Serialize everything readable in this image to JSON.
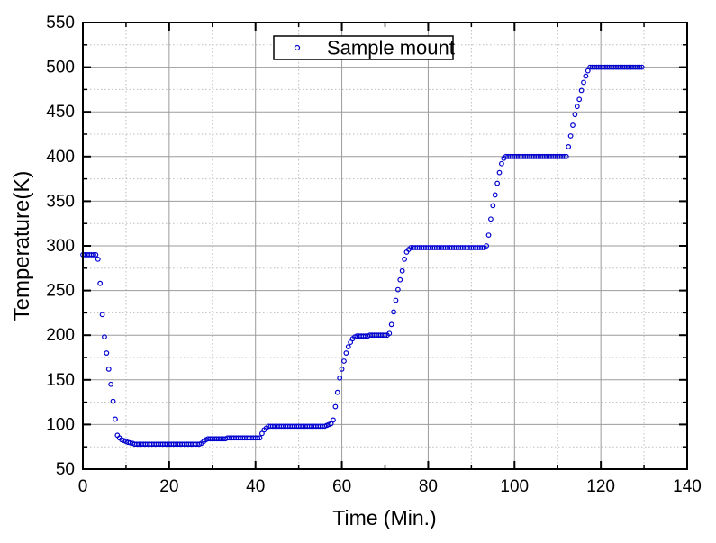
{
  "figure": {
    "background": "#ffffff",
    "axis_color": "#000000",
    "grid_major_color": "#9b9b9b",
    "grid_minor_color": "#bdbdbd"
  },
  "chart_data": {
    "type": "scatter",
    "title": "",
    "xlabel": "Time (Min.)",
    "ylabel": "Temperature(K)",
    "xlim": [
      0,
      140
    ],
    "ylim": [
      50,
      550
    ],
    "xticks_major": [
      0,
      20,
      40,
      60,
      80,
      100,
      120,
      140
    ],
    "xticks_minor": [
      10,
      30,
      50,
      70,
      90,
      110,
      130
    ],
    "yticks_major": [
      50,
      100,
      150,
      200,
      250,
      300,
      350,
      400,
      450,
      500,
      550
    ],
    "yticks_minor": [
      75,
      125,
      175,
      225,
      275,
      325,
      375,
      425,
      475,
      525
    ],
    "grid": {
      "major": "solid",
      "minor": "dotted"
    },
    "legend": {
      "position": "top-center",
      "border": true
    },
    "series": [
      {
        "name": "Sample mount",
        "marker": "open-circle",
        "color": "#0000d0",
        "points": [
          [
            0,
            290
          ],
          [
            0.5,
            290
          ],
          [
            1,
            290
          ],
          [
            1.5,
            290
          ],
          [
            2,
            290
          ],
          [
            2.5,
            290
          ],
          [
            3,
            290
          ],
          [
            3.5,
            285
          ],
          [
            4,
            258
          ],
          [
            4.5,
            223
          ],
          [
            5,
            198
          ],
          [
            5.5,
            180
          ],
          [
            6,
            162
          ],
          [
            6.5,
            145
          ],
          [
            7,
            126
          ],
          [
            7.5,
            106
          ],
          [
            8,
            88
          ],
          [
            8.5,
            85
          ],
          [
            9,
            83
          ],
          [
            9.5,
            82
          ],
          [
            10,
            81
          ],
          [
            10.5,
            80
          ],
          [
            11,
            79.5
          ],
          [
            11.5,
            79
          ],
          [
            12,
            78
          ],
          [
            12.5,
            78
          ],
          [
            13,
            78
          ],
          [
            13.5,
            78
          ],
          [
            14,
            78
          ],
          [
            14.5,
            78
          ],
          [
            15,
            78
          ],
          [
            15.5,
            78
          ],
          [
            16,
            78
          ],
          [
            16.5,
            78
          ],
          [
            17,
            78
          ],
          [
            17.5,
            78
          ],
          [
            18,
            78
          ],
          [
            18.5,
            78
          ],
          [
            19,
            78
          ],
          [
            19.5,
            78
          ],
          [
            20,
            78
          ],
          [
            20.5,
            78
          ],
          [
            21,
            78
          ],
          [
            21.5,
            78
          ],
          [
            22,
            78
          ],
          [
            22.5,
            78
          ],
          [
            23,
            78
          ],
          [
            23.5,
            78
          ],
          [
            24,
            78
          ],
          [
            24.5,
            78
          ],
          [
            25,
            78
          ],
          [
            25.5,
            78
          ],
          [
            26,
            78
          ],
          [
            26.5,
            78
          ],
          [
            27,
            78
          ],
          [
            27.5,
            79
          ],
          [
            28,
            81
          ],
          [
            28.5,
            83
          ],
          [
            29,
            84
          ],
          [
            29.5,
            84
          ],
          [
            30,
            84
          ],
          [
            30.5,
            84
          ],
          [
            31,
            84
          ],
          [
            31.5,
            84
          ],
          [
            32,
            84
          ],
          [
            32.5,
            84
          ],
          [
            33,
            84
          ],
          [
            33.5,
            85
          ],
          [
            34,
            85
          ],
          [
            34.5,
            85
          ],
          [
            35,
            85
          ],
          [
            35.5,
            85
          ],
          [
            36,
            85
          ],
          [
            36.5,
            85
          ],
          [
            37,
            85
          ],
          [
            37.5,
            85
          ],
          [
            38,
            85
          ],
          [
            38.5,
            85
          ],
          [
            39,
            85
          ],
          [
            39.5,
            85
          ],
          [
            40,
            85
          ],
          [
            40.5,
            85
          ],
          [
            41,
            85
          ],
          [
            41.5,
            90
          ],
          [
            42,
            94
          ],
          [
            42.5,
            96
          ],
          [
            43,
            98
          ],
          [
            43.5,
            98
          ],
          [
            44,
            98
          ],
          [
            44.5,
            98
          ],
          [
            45,
            98
          ],
          [
            45.5,
            98
          ],
          [
            46,
            98
          ],
          [
            46.5,
            98
          ],
          [
            47,
            98
          ],
          [
            47.5,
            98
          ],
          [
            48,
            98
          ],
          [
            48.5,
            98
          ],
          [
            49,
            98
          ],
          [
            49.5,
            98
          ],
          [
            50,
            98
          ],
          [
            50.5,
            98
          ],
          [
            51,
            98
          ],
          [
            51.5,
            98
          ],
          [
            52,
            98
          ],
          [
            52.5,
            98
          ],
          [
            53,
            98
          ],
          [
            53.5,
            98
          ],
          [
            54,
            98
          ],
          [
            54.5,
            98
          ],
          [
            55,
            98
          ],
          [
            55.5,
            98
          ],
          [
            56,
            98
          ],
          [
            56.5,
            99
          ],
          [
            57,
            100
          ],
          [
            57.5,
            101
          ],
          [
            58,
            105
          ],
          [
            58.5,
            120
          ],
          [
            59,
            136
          ],
          [
            59.5,
            152
          ],
          [
            60,
            162
          ],
          [
            60.5,
            171
          ],
          [
            61,
            180
          ],
          [
            61.5,
            187
          ],
          [
            62,
            192
          ],
          [
            62.5,
            196
          ],
          [
            63,
            198
          ],
          [
            63.5,
            199
          ],
          [
            64,
            199
          ],
          [
            64.5,
            199
          ],
          [
            65,
            199
          ],
          [
            65.5,
            199
          ],
          [
            66,
            199
          ],
          [
            66.5,
            200
          ],
          [
            67,
            200
          ],
          [
            67.5,
            200
          ],
          [
            68,
            200
          ],
          [
            68.5,
            200
          ],
          [
            69,
            200
          ],
          [
            69.5,
            200
          ],
          [
            70,
            200
          ],
          [
            70.5,
            200
          ],
          [
            71,
            202
          ],
          [
            71.5,
            212
          ],
          [
            72,
            226
          ],
          [
            72.5,
            239
          ],
          [
            73,
            251
          ],
          [
            73.5,
            262
          ],
          [
            74,
            272
          ],
          [
            74.5,
            285
          ],
          [
            75,
            293
          ],
          [
            75.5,
            296
          ],
          [
            76,
            298
          ],
          [
            76.5,
            298
          ],
          [
            77,
            298
          ],
          [
            77.5,
            298
          ],
          [
            78,
            298
          ],
          [
            78.5,
            298
          ],
          [
            79,
            298
          ],
          [
            79.5,
            298
          ],
          [
            80,
            298
          ],
          [
            80.5,
            298
          ],
          [
            81,
            298
          ],
          [
            81.5,
            298
          ],
          [
            82,
            298
          ],
          [
            82.5,
            298
          ],
          [
            83,
            298
          ],
          [
            83.5,
            298
          ],
          [
            84,
            298
          ],
          [
            84.5,
            298
          ],
          [
            85,
            298
          ],
          [
            85.5,
            298
          ],
          [
            86,
            298
          ],
          [
            86.5,
            298
          ],
          [
            87,
            298
          ],
          [
            87.5,
            298
          ],
          [
            88,
            298
          ],
          [
            88.5,
            298
          ],
          [
            89,
            298
          ],
          [
            89.5,
            298
          ],
          [
            90,
            298
          ],
          [
            90.5,
            298
          ],
          [
            91,
            298
          ],
          [
            91.5,
            298
          ],
          [
            92,
            298
          ],
          [
            92.5,
            298
          ],
          [
            93,
            298
          ],
          [
            93.5,
            300
          ],
          [
            94,
            312
          ],
          [
            94.5,
            330
          ],
          [
            95,
            345
          ],
          [
            95.5,
            357
          ],
          [
            96,
            370
          ],
          [
            96.5,
            382
          ],
          [
            97,
            392
          ],
          [
            97.5,
            398
          ],
          [
            98,
            400
          ],
          [
            98.5,
            400
          ],
          [
            99,
            400
          ],
          [
            99.5,
            400
          ],
          [
            100,
            400
          ],
          [
            100.5,
            400
          ],
          [
            101,
            400
          ],
          [
            101.5,
            400
          ],
          [
            102,
            400
          ],
          [
            102.5,
            400
          ],
          [
            103,
            400
          ],
          [
            103.5,
            400
          ],
          [
            104,
            400
          ],
          [
            104.5,
            400
          ],
          [
            105,
            400
          ],
          [
            105.5,
            400
          ],
          [
            106,
            400
          ],
          [
            106.5,
            400
          ],
          [
            107,
            400
          ],
          [
            107.5,
            400
          ],
          [
            108,
            400
          ],
          [
            108.5,
            400
          ],
          [
            109,
            400
          ],
          [
            109.5,
            400
          ],
          [
            110,
            400
          ],
          [
            110.5,
            400
          ],
          [
            111,
            400
          ],
          [
            111.5,
            400
          ],
          [
            112,
            400
          ],
          [
            112.5,
            411
          ],
          [
            113,
            423
          ],
          [
            113.5,
            435
          ],
          [
            114,
            447
          ],
          [
            114.5,
            456
          ],
          [
            115,
            464
          ],
          [
            115.5,
            474
          ],
          [
            116,
            483
          ],
          [
            116.5,
            490
          ],
          [
            117,
            496
          ],
          [
            117.5,
            500
          ],
          [
            118,
            500
          ],
          [
            118.5,
            500
          ],
          [
            119,
            500
          ],
          [
            119.5,
            500
          ],
          [
            120,
            500
          ],
          [
            120.5,
            500
          ],
          [
            121,
            500
          ],
          [
            121.5,
            500
          ],
          [
            122,
            500
          ],
          [
            122.5,
            500
          ],
          [
            123,
            500
          ],
          [
            123.5,
            500
          ],
          [
            124,
            500
          ],
          [
            124.5,
            500
          ],
          [
            125,
            500
          ],
          [
            125.5,
            500
          ],
          [
            126,
            500
          ],
          [
            126.5,
            500
          ],
          [
            127,
            500
          ],
          [
            127.5,
            500
          ],
          [
            128,
            500
          ],
          [
            128.5,
            500
          ],
          [
            129,
            500
          ],
          [
            129.5,
            500
          ]
        ]
      }
    ]
  }
}
